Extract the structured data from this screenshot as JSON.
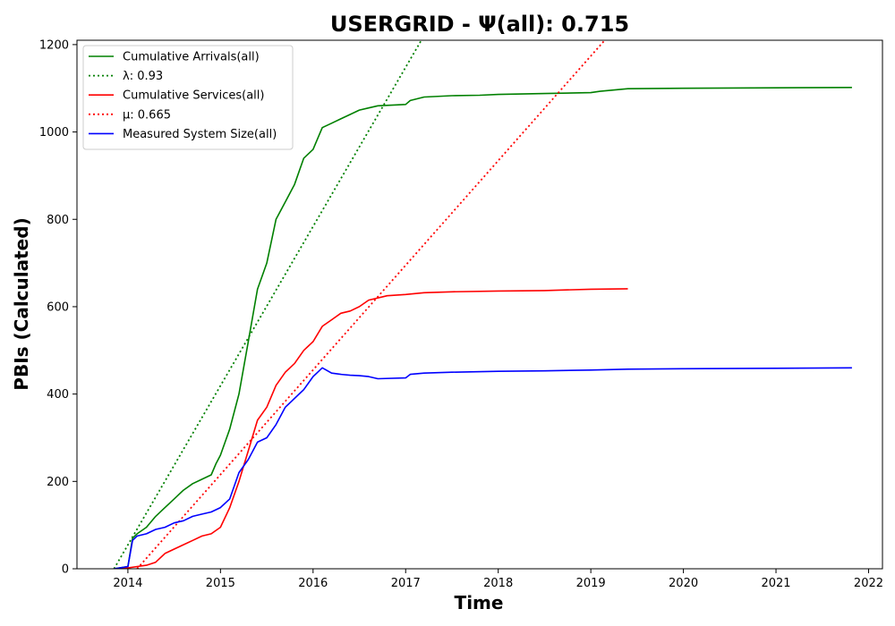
{
  "chart_data": {
    "type": "line",
    "title": "USERGRID -  Ψ(all): 0.715",
    "xlabel": "Time",
    "ylabel": "PBIs (Calculated)",
    "xlim": [
      2013.45,
      2022.15
    ],
    "ylim": [
      0,
      1210
    ],
    "x_ticks": [
      2014,
      2015,
      2016,
      2017,
      2018,
      2019,
      2020,
      2021,
      2022
    ],
    "y_ticks": [
      0,
      200,
      400,
      600,
      800,
      1000,
      1200
    ],
    "grid": false,
    "legend_position": "top-left",
    "series": [
      {
        "name": "Cumulative Arrivals(all)",
        "style": "solid",
        "color": "#008000",
        "x": [
          2013.85,
          2014.0,
          2014.05,
          2014.1,
          2014.2,
          2014.3,
          2014.4,
          2014.5,
          2014.6,
          2014.7,
          2014.8,
          2014.9,
          2014.95,
          2015.0,
          2015.05,
          2015.1,
          2015.2,
          2015.3,
          2015.4,
          2015.5,
          2015.6,
          2015.7,
          2015.8,
          2015.9,
          2016.0,
          2016.1,
          2016.2,
          2016.3,
          2016.4,
          2016.5,
          2016.6,
          2016.7,
          2017.0,
          2017.05,
          2017.2,
          2017.5,
          2017.8,
          2018.0,
          2018.5,
          2019.0,
          2019.1,
          2019.4,
          2020.0,
          2021.0,
          2021.82
        ],
        "y": [
          0,
          5,
          70,
          80,
          95,
          120,
          140,
          160,
          180,
          195,
          205,
          215,
          240,
          260,
          290,
          320,
          400,
          520,
          640,
          700,
          800,
          840,
          880,
          940,
          960,
          1010,
          1020,
          1030,
          1040,
          1050,
          1055,
          1060,
          1063,
          1072,
          1080,
          1083,
          1084,
          1086,
          1088,
          1090,
          1093,
          1099,
          1100,
          1101,
          1102
        ]
      },
      {
        "name": "λ: 0.93",
        "style": "dotted",
        "color": "#008000",
        "x": [
          2013.85,
          2017.17
        ],
        "y": [
          0,
          1210
        ]
      },
      {
        "name": "Cumulative Services(all)",
        "style": "solid",
        "color": "#ff0000",
        "x": [
          2013.85,
          2014.0,
          2014.2,
          2014.3,
          2014.4,
          2014.5,
          2014.6,
          2014.7,
          2014.8,
          2014.9,
          2015.0,
          2015.1,
          2015.2,
          2015.3,
          2015.4,
          2015.5,
          2015.6,
          2015.7,
          2015.8,
          2015.9,
          2016.0,
          2016.1,
          2016.2,
          2016.3,
          2016.4,
          2016.5,
          2016.6,
          2016.8,
          2017.0,
          2017.2,
          2017.5,
          2018.0,
          2018.5,
          2019.0,
          2019.4
        ],
        "y": [
          0,
          2,
          8,
          15,
          35,
          45,
          55,
          65,
          75,
          80,
          95,
          140,
          200,
          270,
          340,
          370,
          420,
          450,
          470,
          500,
          520,
          555,
          570,
          585,
          590,
          600,
          615,
          625,
          628,
          632,
          634,
          636,
          637,
          640,
          641
        ]
      },
      {
        "name": "μ: 0.665",
        "style": "dotted",
        "color": "#ff0000",
        "x": [
          2014.1,
          2019.15
        ],
        "y": [
          0,
          1210
        ]
      },
      {
        "name": "Measured System Size(all)",
        "style": "solid",
        "color": "#0000ff",
        "x": [
          2013.85,
          2014.0,
          2014.05,
          2014.1,
          2014.2,
          2014.3,
          2014.4,
          2014.5,
          2014.6,
          2014.7,
          2014.8,
          2014.9,
          2015.0,
          2015.1,
          2015.2,
          2015.3,
          2015.4,
          2015.5,
          2015.6,
          2015.7,
          2015.8,
          2015.9,
          2016.0,
          2016.05,
          2016.1,
          2016.2,
          2016.3,
          2016.4,
          2016.5,
          2016.6,
          2016.7,
          2017.0,
          2017.05,
          2017.2,
          2017.5,
          2018.0,
          2018.5,
          2019.0,
          2019.4,
          2020.0,
          2021.0,
          2021.82
        ],
        "y": [
          0,
          5,
          65,
          75,
          80,
          90,
          95,
          105,
          110,
          120,
          125,
          130,
          140,
          160,
          220,
          250,
          290,
          300,
          330,
          370,
          390,
          410,
          440,
          450,
          460,
          448,
          445,
          443,
          442,
          440,
          435,
          437,
          445,
          448,
          450,
          452,
          453,
          455,
          457,
          458,
          459,
          460
        ]
      }
    ]
  }
}
